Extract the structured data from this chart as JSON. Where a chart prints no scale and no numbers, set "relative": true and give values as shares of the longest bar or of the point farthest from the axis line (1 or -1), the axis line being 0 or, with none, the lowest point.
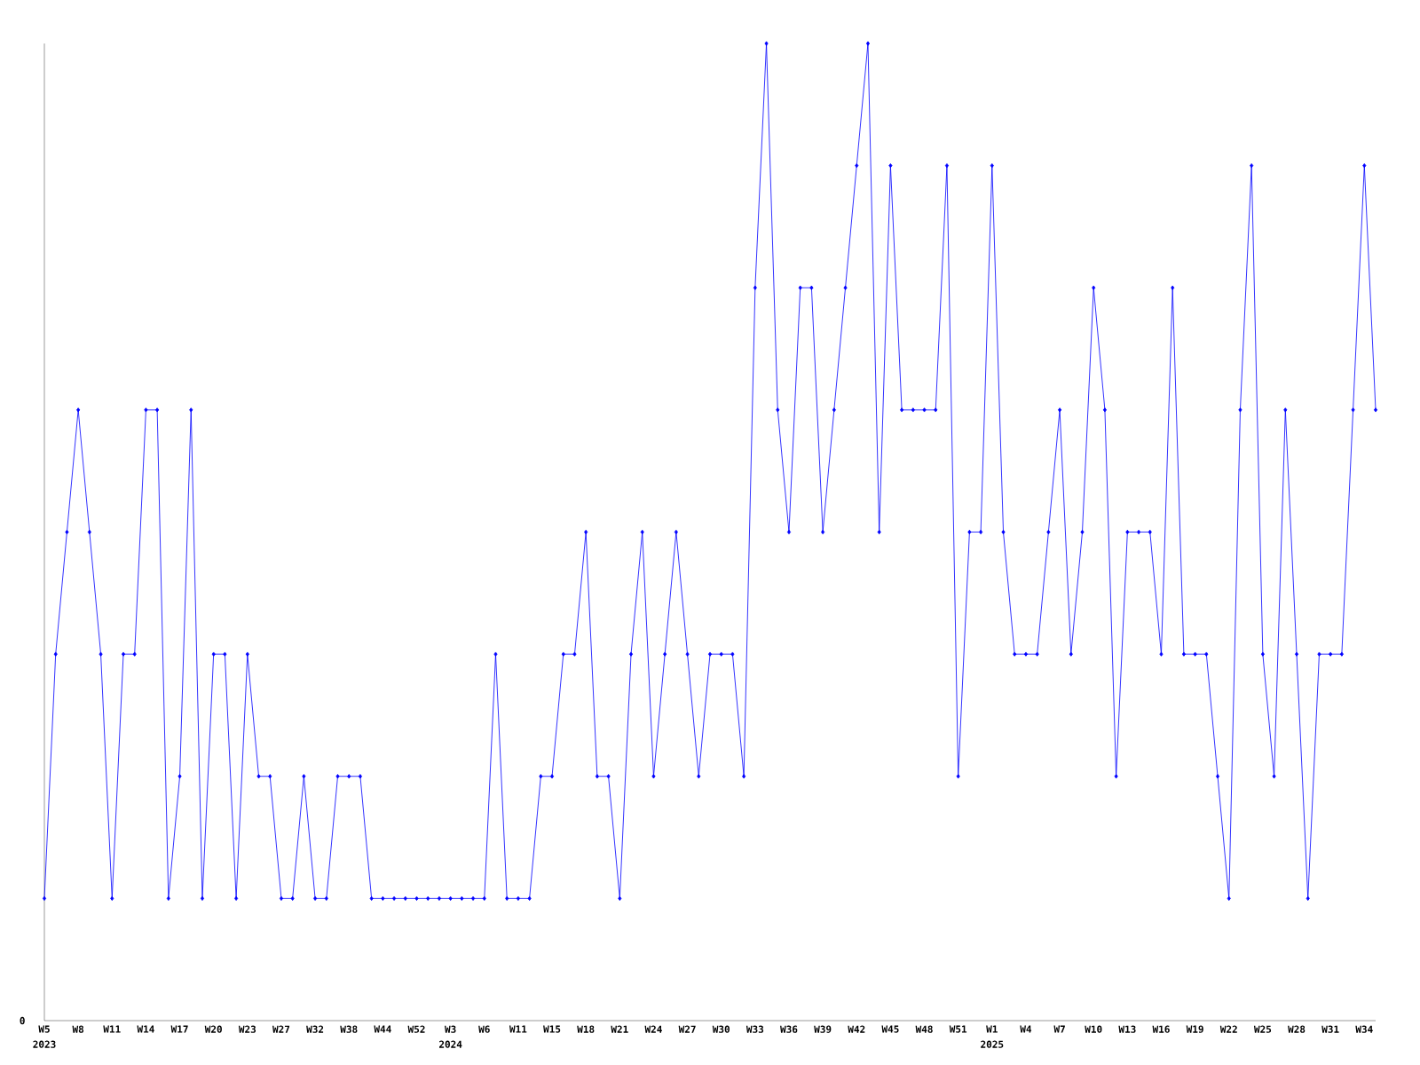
{
  "chart_data": {
    "type": "line",
    "color": "#0000ff",
    "marker": "diamond",
    "relative": true,
    "categories": [
      "W5",
      null,
      null,
      "W8",
      null,
      null,
      "W11",
      null,
      null,
      "W14",
      null,
      null,
      "W17",
      null,
      null,
      "W20",
      null,
      null,
      "W23",
      null,
      null,
      "W27",
      null,
      null,
      "W32",
      null,
      null,
      "W38",
      null,
      null,
      "W44",
      null,
      null,
      "W52",
      null,
      null,
      "W3",
      null,
      null,
      "W6",
      null,
      null,
      "W11",
      null,
      null,
      "W15",
      null,
      null,
      "W18",
      null,
      null,
      "W21",
      null,
      null,
      "W24",
      null,
      null,
      "W27",
      null,
      null,
      "W30",
      null,
      null,
      "W33",
      null,
      null,
      "W36",
      null,
      null,
      "W39",
      null,
      null,
      "W42",
      null,
      null,
      "W45",
      null,
      null,
      "W48",
      null,
      null,
      "W51",
      null,
      null,
      "W1",
      null,
      null,
      "W4",
      null,
      null,
      "W7",
      null,
      null,
      "W10",
      null,
      null,
      "W13",
      null,
      null,
      "W16",
      null,
      null,
      "W19",
      null,
      null,
      "W22",
      null,
      null,
      "W25",
      null,
      null,
      "W28",
      null,
      null,
      "W31",
      null,
      null,
      "W34",
      null
    ],
    "values": [
      0.125,
      0.375,
      0.5,
      0.625,
      0.5,
      0.375,
      0.125,
      0.375,
      0.375,
      0.625,
      0.625,
      0.125,
      0.25,
      0.625,
      0.125,
      0.375,
      0.375,
      0.125,
      0.375,
      0.25,
      0.25,
      0.125,
      0.125,
      0.25,
      0.125,
      0.125,
      0.25,
      0.25,
      0.25,
      0.125,
      0.125,
      0.125,
      0.125,
      0.125,
      0.125,
      0.125,
      0.125,
      0.125,
      0.125,
      0.125,
      0.375,
      0.125,
      0.125,
      0.125,
      0.25,
      0.25,
      0.375,
      0.375,
      0.5,
      0.25,
      0.25,
      0.125,
      0.375,
      0.5,
      0.25,
      0.375,
      0.5,
      0.375,
      0.25,
      0.375,
      0.375,
      0.375,
      0.25,
      0.75,
      1,
      0.625,
      0.5,
      0.75,
      0.75,
      0.5,
      0.625,
      0.75,
      0.875,
      1,
      0.5,
      0.875,
      0.625,
      0.625,
      0.625,
      0.625,
      0.875,
      0.25,
      0.5,
      0.5,
      0.875,
      0.5,
      0.375,
      0.375,
      0.375,
      0.5,
      0.625,
      0.375,
      0.5,
      0.75,
      0.625,
      0.25,
      0.5,
      0.5,
      0.5,
      0.375,
      0.75,
      0.375,
      0.375,
      0.375,
      0.25,
      0.125,
      0.625,
      0.875,
      0.375,
      0.25,
      0.625,
      0.375,
      0.125,
      0.375,
      0.375,
      0.375,
      0.625,
      0.875,
      0.625
    ],
    "annotations": [
      "0",
      "2023",
      "2024",
      "2025"
    ]
  }
}
